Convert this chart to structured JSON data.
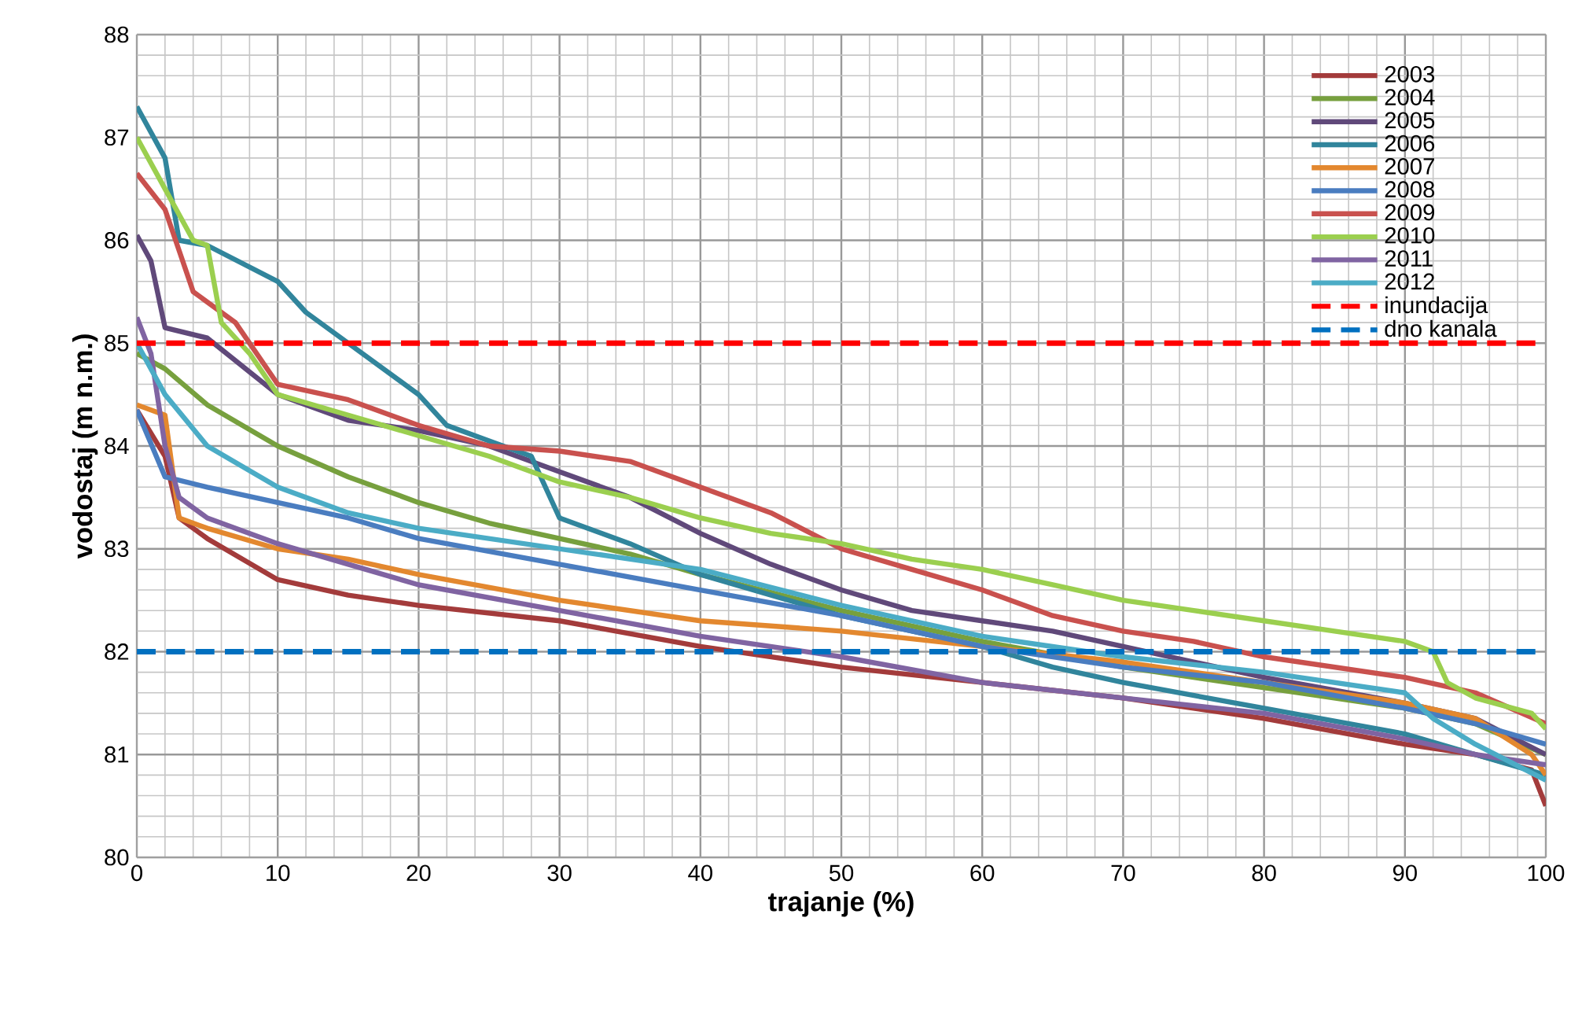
{
  "chart_data": {
    "type": "line",
    "xlabel": "trajanje (%)",
    "ylabel": "vodostaj (m n.m.)",
    "xlim": [
      0,
      100
    ],
    "ylim": [
      80,
      88
    ],
    "xticks": [
      0,
      10,
      20,
      30,
      40,
      50,
      60,
      70,
      80,
      90,
      100
    ],
    "yticks": [
      80,
      81,
      82,
      83,
      84,
      85,
      86,
      87,
      88
    ],
    "grid": true,
    "legend": "top right",
    "marker": "none",
    "line_style": "solid",
    "series": [
      {
        "name": "2003",
        "color": "#a33b3b",
        "x": [
          0,
          2,
          3,
          5,
          10,
          15,
          20,
          30,
          40,
          50,
          60,
          70,
          80,
          90,
          95,
          99,
          100
        ],
        "values": [
          84.35,
          83.9,
          83.3,
          83.1,
          82.7,
          82.55,
          82.45,
          82.3,
          82.05,
          81.85,
          81.7,
          81.55,
          81.35,
          81.1,
          81.0,
          80.85,
          80.5
        ]
      },
      {
        "name": "2004",
        "color": "#77a03e",
        "x": [
          0,
          2,
          5,
          10,
          15,
          20,
          25,
          30,
          35,
          40,
          50,
          60,
          70,
          80,
          90,
          95,
          100
        ],
        "values": [
          84.9,
          84.75,
          84.4,
          84.0,
          83.7,
          83.45,
          83.25,
          83.1,
          82.95,
          82.75,
          82.4,
          82.1,
          81.85,
          81.65,
          81.45,
          81.3,
          81.0
        ]
      },
      {
        "name": "2005",
        "color": "#60497a",
        "x": [
          0,
          1,
          2,
          5,
          10,
          15,
          20,
          25,
          30,
          35,
          40,
          45,
          50,
          55,
          60,
          65,
          70,
          75,
          80,
          90,
          95,
          100
        ],
        "values": [
          86.05,
          85.8,
          85.15,
          85.05,
          84.5,
          84.25,
          84.15,
          84.0,
          83.75,
          83.5,
          83.15,
          82.85,
          82.6,
          82.4,
          82.3,
          82.2,
          82.05,
          81.9,
          81.75,
          81.5,
          81.35,
          81.0
        ]
      },
      {
        "name": "2006",
        "color": "#31859c",
        "x": [
          0,
          2,
          3,
          5,
          10,
          12,
          15,
          20,
          22,
          25,
          28,
          30,
          35,
          40,
          50,
          60,
          65,
          70,
          80,
          90,
          95,
          100
        ],
        "values": [
          87.3,
          86.8,
          86.0,
          85.95,
          85.6,
          85.3,
          85.0,
          84.5,
          84.2,
          84.05,
          83.9,
          83.3,
          83.05,
          82.75,
          82.35,
          82.05,
          81.85,
          81.7,
          81.45,
          81.2,
          81.0,
          80.8
        ]
      },
      {
        "name": "2007",
        "color": "#e3882f",
        "x": [
          0,
          2,
          3,
          5,
          10,
          15,
          20,
          30,
          40,
          50,
          60,
          70,
          80,
          90,
          95,
          99,
          100
        ],
        "values": [
          84.4,
          84.3,
          83.3,
          83.2,
          83.0,
          82.9,
          82.75,
          82.5,
          82.3,
          82.2,
          82.05,
          81.9,
          81.7,
          81.5,
          81.35,
          81.0,
          80.8
        ]
      },
      {
        "name": "2008",
        "color": "#4a7dc0",
        "x": [
          0,
          2,
          5,
          10,
          15,
          20,
          30,
          40,
          50,
          60,
          70,
          80,
          90,
          95,
          100
        ],
        "values": [
          84.35,
          83.7,
          83.6,
          83.45,
          83.3,
          83.1,
          82.85,
          82.6,
          82.35,
          82.05,
          81.85,
          81.7,
          81.45,
          81.3,
          81.1
        ]
      },
      {
        "name": "2009",
        "color": "#c9514e",
        "x": [
          0,
          2,
          3,
          4,
          7,
          10,
          15,
          20,
          25,
          30,
          35,
          40,
          45,
          50,
          55,
          60,
          65,
          70,
          75,
          80,
          90,
          95,
          100
        ],
        "values": [
          86.65,
          86.3,
          85.9,
          85.5,
          85.2,
          84.6,
          84.45,
          84.2,
          84.0,
          83.95,
          83.85,
          83.6,
          83.35,
          83.0,
          82.8,
          82.6,
          82.35,
          82.2,
          82.1,
          81.95,
          81.75,
          81.6,
          81.3
        ]
      },
      {
        "name": "2010",
        "color": "#9bcf4f",
        "x": [
          0,
          2,
          4,
          5,
          6,
          8,
          10,
          15,
          20,
          25,
          30,
          35,
          40,
          45,
          50,
          55,
          60,
          65,
          70,
          75,
          80,
          85,
          90,
          92,
          93,
          95,
          99,
          100
        ],
        "values": [
          87.0,
          86.5,
          86.0,
          85.95,
          85.2,
          84.9,
          84.5,
          84.3,
          84.1,
          83.9,
          83.65,
          83.5,
          83.3,
          83.15,
          83.05,
          82.9,
          82.8,
          82.65,
          82.5,
          82.4,
          82.3,
          82.2,
          82.1,
          82.0,
          81.7,
          81.55,
          81.4,
          81.25
        ]
      },
      {
        "name": "2011",
        "color": "#8064a2",
        "x": [
          0,
          1,
          2,
          3,
          5,
          10,
          15,
          20,
          30,
          40,
          50,
          60,
          70,
          80,
          90,
          95,
          100
        ],
        "values": [
          85.25,
          84.9,
          84.0,
          83.5,
          83.3,
          83.05,
          82.85,
          82.65,
          82.4,
          82.15,
          81.95,
          81.7,
          81.55,
          81.4,
          81.15,
          81.0,
          80.9
        ]
      },
      {
        "name": "2012",
        "color": "#4bacc6",
        "x": [
          0,
          2,
          5,
          10,
          15,
          20,
          30,
          40,
          50,
          60,
          70,
          80,
          90,
          92,
          95,
          100
        ],
        "values": [
          85.0,
          84.5,
          84.0,
          83.6,
          83.35,
          83.2,
          83.0,
          82.8,
          82.45,
          82.15,
          81.95,
          81.8,
          81.6,
          81.35,
          81.1,
          80.75
        ]
      }
    ],
    "ref_lines": [
      {
        "axis": "y",
        "value": 85,
        "label": "inundacija",
        "color": "#ff0000",
        "line_style": "dashed"
      },
      {
        "axis": "y",
        "value": 82,
        "label": "dno kanala",
        "color": "#0070c0",
        "line_style": "dashed"
      }
    ]
  }
}
